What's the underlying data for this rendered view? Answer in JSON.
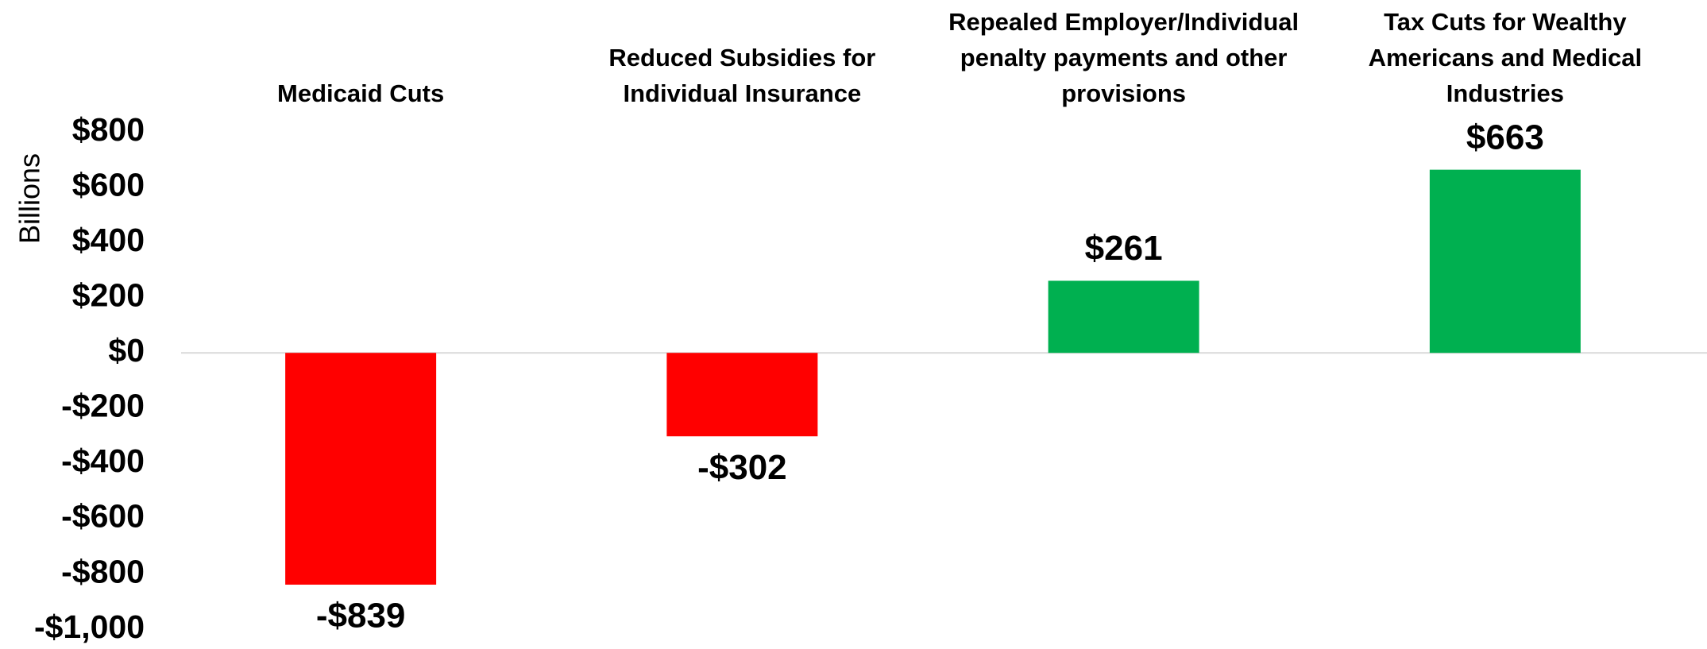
{
  "chart_data": {
    "type": "bar",
    "title": "",
    "xlabel": "",
    "ylabel": "Billions",
    "ylim": [
      -1000,
      800
    ],
    "yticks": [
      800,
      600,
      400,
      200,
      0,
      -200,
      -400,
      -600,
      -800,
      -1000
    ],
    "ytick_labels": [
      "$800",
      "$600",
      "$400",
      "$200",
      "$0",
      "-$200",
      "-$400",
      "-$600",
      "-$800",
      "-$1,000"
    ],
    "grid": false,
    "legend": "none",
    "categories": [
      "Medicaid Cuts",
      "Reduced Subsidies for Individual Insurance",
      "Repealed Employer/Individual penalty payments and other provisions",
      "Tax Cuts for Wealthy Americans and Medical Industries"
    ],
    "category_label_lines": [
      [
        "Medicaid Cuts"
      ],
      [
        "Reduced Subsidies for",
        "Individual Insurance"
      ],
      [
        "Repealed Employer/Individual",
        "penalty payments and other",
        "provisions"
      ],
      [
        "Tax Cuts for Wealthy",
        "Americans and Medical",
        "Industries"
      ]
    ],
    "values": [
      -839,
      -302,
      261,
      663
    ],
    "data_labels": [
      "-$839",
      "-$302",
      "$261",
      "$663"
    ],
    "colors": {
      "negative": "#ff0000",
      "positive": "#00b050",
      "zero_line": "#d9d9d9",
      "text": "#000000"
    }
  }
}
